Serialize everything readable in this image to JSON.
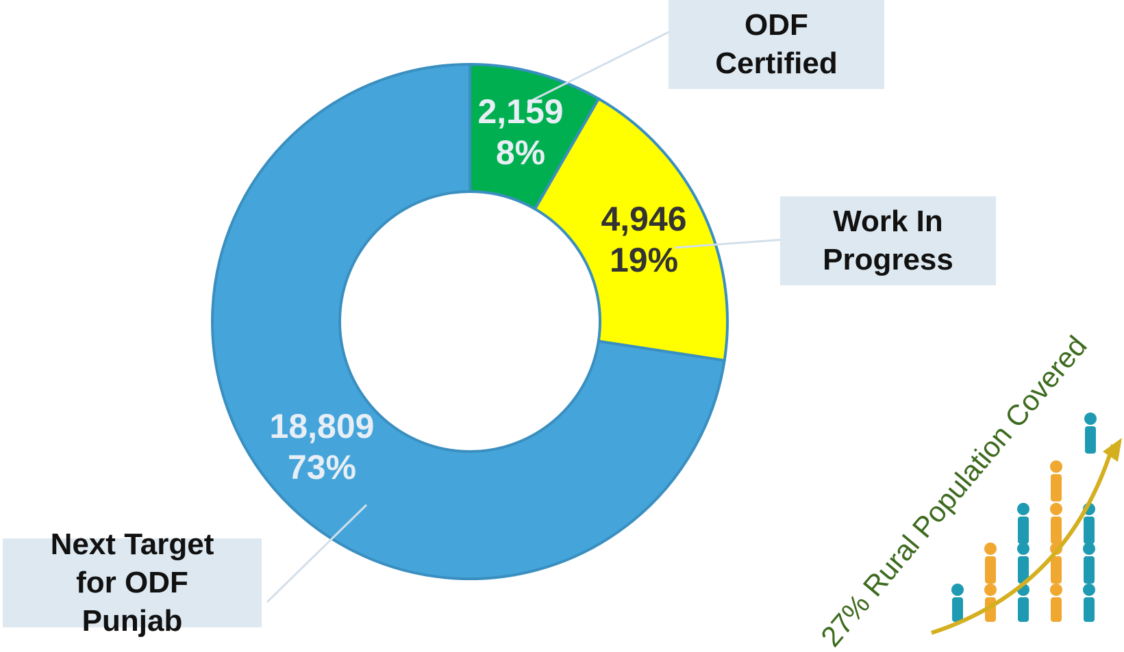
{
  "chart_data": {
    "type": "donut",
    "categories": [
      "ODF Certified",
      "Work In Progress",
      "Next Target for ODF Punjab"
    ],
    "values": [
      2159,
      4946,
      18809
    ],
    "value_labels": [
      "2,159",
      "4,946",
      "18,809"
    ],
    "percent_labels": [
      "8%",
      "19%",
      "73%"
    ],
    "colors": [
      "#00b050",
      "#ffff00",
      "#45a5da"
    ],
    "annotation": "27% Rural Population Covered"
  }
}
